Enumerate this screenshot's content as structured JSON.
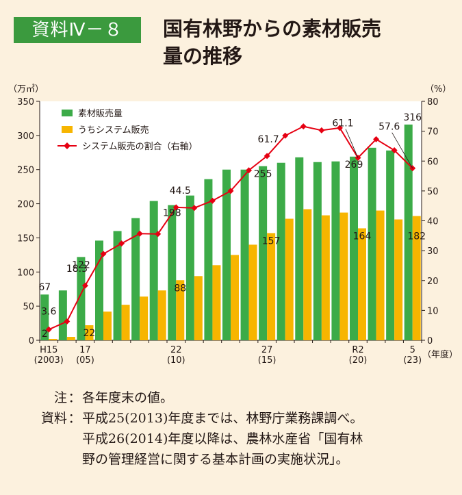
{
  "header": {
    "badge": "資料Ⅳ－８",
    "title_line1": "国有林野からの素材販売",
    "title_line2": "量の推移"
  },
  "chart_data": {
    "type": "bar",
    "left_unit": "（万㎥）",
    "right_unit": "（%）",
    "x_unit": "（年度）",
    "ylim": [
      0,
      350
    ],
    "y2lim": [
      0,
      80
    ],
    "y_ticks": [
      0,
      50,
      100,
      150,
      200,
      250,
      300,
      350
    ],
    "y2_ticks": [
      0,
      10,
      20,
      30,
      40,
      50,
      60,
      70,
      80
    ],
    "grid": false,
    "legend_position": "top-left",
    "x_tick_labels": [
      {
        "index": 0,
        "line1": "H15",
        "line2": "(2003)"
      },
      {
        "index": 2,
        "line1": "17",
        "line2": "(05)"
      },
      {
        "index": 7,
        "line1": "22",
        "line2": "(10)"
      },
      {
        "index": 12,
        "line1": "27",
        "line2": "(15)"
      },
      {
        "index": 17,
        "line1": "R2",
        "line2": "(20)"
      },
      {
        "index": 20,
        "line1": "5",
        "line2": "(23)"
      }
    ],
    "categories": [
      "H15",
      "H16",
      "H17",
      "H18",
      "H19",
      "H20",
      "H21",
      "H22",
      "H23",
      "H24",
      "H25",
      "H26",
      "H27",
      "H28",
      "H29",
      "H30",
      "R1",
      "R2",
      "R3",
      "R4",
      "R5"
    ],
    "series": [
      {
        "name": "素材販売量",
        "type": "bar",
        "color": "#3cab48",
        "values": [
          67,
          73,
          122,
          146,
          160,
          179,
          204,
          198,
          212,
          236,
          250,
          250,
          255,
          260,
          268,
          261,
          262,
          269,
          282,
          278,
          316
        ]
      },
      {
        "name": "うちシステム販売",
        "type": "bar",
        "color": "#f7b500",
        "values": [
          2,
          5,
          22,
          42,
          52,
          64,
          73,
          88,
          94,
          110,
          125,
          140,
          157,
          178,
          192,
          183,
          187,
          164,
          190,
          177,
          182
        ]
      },
      {
        "name": "システム販売の割合（右軸）",
        "type": "line",
        "axis": "right",
        "color": "#e60012",
        "values": [
          3.6,
          6.3,
          18.3,
          28.9,
          32.4,
          35.7,
          35.6,
          44.5,
          44.3,
          46.7,
          50.0,
          56.9,
          61.7,
          68.5,
          71.6,
          70.3,
          71.1,
          61.1,
          67.3,
          63.6,
          57.6
        ]
      }
    ],
    "annotations": [
      {
        "text": "67",
        "target": "bar",
        "index": 0
      },
      {
        "text": "2",
        "target": "sys",
        "index": 0
      },
      {
        "text": "3.6",
        "target": "line",
        "index": 0
      },
      {
        "text": "18.3",
        "target": "line",
        "index": 2
      },
      {
        "text": "122",
        "target": "bar",
        "index": 2
      },
      {
        "text": "22",
        "target": "sys",
        "index": 2
      },
      {
        "text": "44.5",
        "target": "line",
        "index": 7
      },
      {
        "text": "198",
        "target": "bar",
        "index": 7
      },
      {
        "text": "88",
        "target": "sys",
        "index": 7
      },
      {
        "text": "61.7",
        "target": "line",
        "index": 12
      },
      {
        "text": "255",
        "target": "bar",
        "index": 12
      },
      {
        "text": "157",
        "target": "sys",
        "index": 12
      },
      {
        "text": "61.1",
        "target": "line",
        "index": 17
      },
      {
        "text": "269",
        "target": "bar",
        "index": 17
      },
      {
        "text": "164",
        "target": "sys",
        "index": 17
      },
      {
        "text": "57.6",
        "target": "line",
        "index": 20
      },
      {
        "text": "316",
        "target": "bar",
        "index": 20
      },
      {
        "text": "182",
        "target": "sys",
        "index": 20
      }
    ]
  },
  "notes": [
    {
      "label": "注",
      "text": "各年度末の値。"
    },
    {
      "label": "資料",
      "text": "平成25(2013)年度までは、林野庁業務課調べ。"
    },
    {
      "label": "",
      "text": "平成26(2014)年度以降は、農林水産省「国有林"
    },
    {
      "label": "",
      "text": "野の管理経営に関する基本計画の実施状況」。",
      "full": true
    }
  ]
}
